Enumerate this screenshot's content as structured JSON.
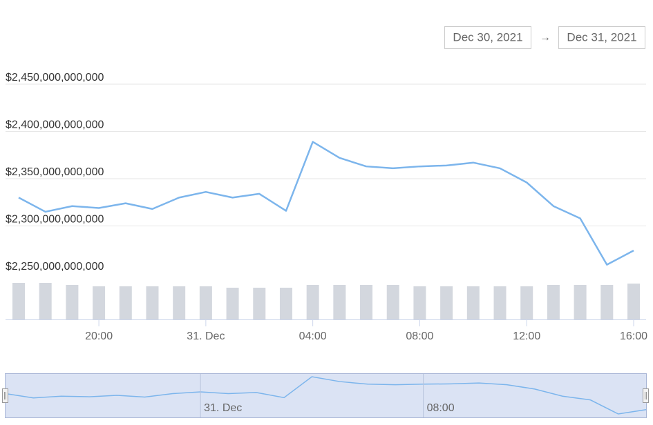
{
  "range_selector": {
    "from": "Dec 30, 2021",
    "arrow": "→",
    "to": "Dec 31, 2021"
  },
  "chart_data": {
    "type": "line",
    "categories": [
      null,
      null,
      null,
      "20:00",
      null,
      null,
      null,
      "31. Dec",
      null,
      null,
      null,
      "04:00",
      null,
      null,
      null,
      "08:00",
      null,
      null,
      null,
      "12:00",
      null,
      null,
      null,
      "16:00"
    ],
    "series": [
      {
        "color": "#7cb5ec",
        "values": [
          2330000000000,
          2315000000000,
          2321000000000,
          2319000000000,
          2324000000000,
          2318000000000,
          2330000000000,
          2336000000000,
          2330000000000,
          2334000000000,
          2316000000000,
          2389000000000,
          2372000000000,
          2363000000000,
          2361000000000,
          2363000000000,
          2364000000000,
          2367000000000,
          2361000000000,
          2346000000000,
          2321000000000,
          2308000000000,
          2259000000000,
          2274000000000
        ]
      },
      {
        "color": "#d3d7de",
        "axis": "y2",
        "values": [
          53,
          53,
          50,
          48,
          48,
          48,
          48,
          48,
          46,
          46,
          46,
          50,
          50,
          50,
          50,
          48,
          48,
          48,
          48,
          48,
          50,
          50,
          50,
          52
        ]
      }
    ],
    "ylim": [
      2250000000000,
      2450000000000
    ],
    "yticks": [
      {
        "value": 2250000000000,
        "label": "$2,250,000,000,000"
      },
      {
        "value": 2300000000000,
        "label": "$2,300,000,000,000"
      },
      {
        "value": 2350000000000,
        "label": "$2,350,000,000,000"
      },
      {
        "value": 2400000000000,
        "label": "$2,400,000,000,000"
      },
      {
        "value": 2450000000000,
        "label": "$2,450,000,000,000"
      }
    ],
    "y2lim": [
      0,
      55
    ],
    "grid": true,
    "navigator_categories": [
      null,
      null,
      null,
      null,
      null,
      null,
      null,
      "31. Dec",
      null,
      null,
      null,
      null,
      null,
      null,
      null,
      "08:00",
      null,
      null,
      null,
      null,
      null,
      null,
      null,
      null
    ]
  }
}
